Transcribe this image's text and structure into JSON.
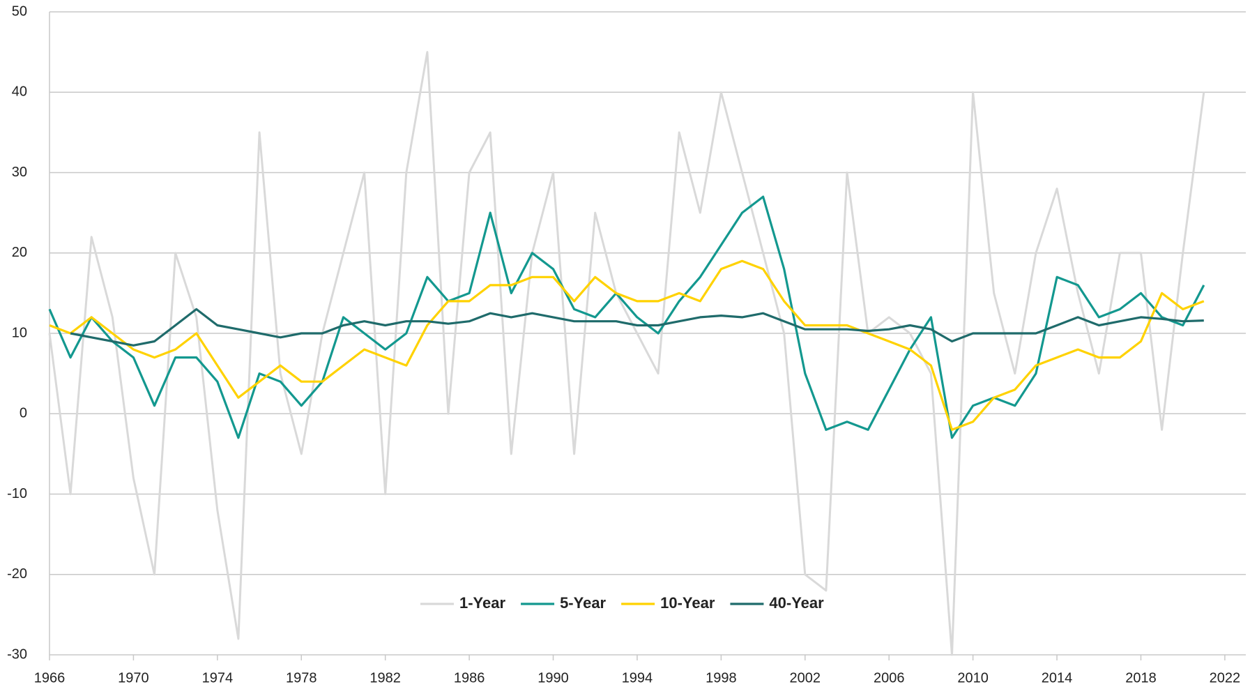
{
  "chart_data": {
    "type": "line",
    "x": [
      1966,
      1967,
      1968,
      1969,
      1970,
      1971,
      1972,
      1973,
      1974,
      1975,
      1976,
      1977,
      1978,
      1979,
      1980,
      1981,
      1982,
      1983,
      1984,
      1985,
      1986,
      1987,
      1988,
      1989,
      1990,
      1991,
      1992,
      1993,
      1994,
      1995,
      1996,
      1997,
      1998,
      1999,
      2000,
      2001,
      2002,
      2003,
      2004,
      2005,
      2006,
      2007,
      2008,
      2009,
      2010,
      2011,
      2012,
      2013,
      2014,
      2015,
      2016,
      2017,
      2018,
      2019,
      2020,
      2021
    ],
    "series": [
      {
        "name": "1-Year",
        "color": "#d9d9d9",
        "values": [
          10,
          -10,
          22,
          12,
          -8,
          -20,
          20,
          12,
          -12,
          -28,
          35,
          5,
          -5,
          10,
          20,
          30,
          -10,
          30,
          45,
          0,
          30,
          35,
          -5,
          20,
          30,
          -5,
          25,
          15,
          10,
          5,
          35,
          25,
          40,
          30,
          20,
          10,
          -20,
          -22,
          30,
          10,
          12,
          10,
          5,
          -30,
          40,
          15,
          5,
          20,
          28,
          15,
          5,
          20,
          20,
          -2,
          20,
          40
        ]
      },
      {
        "name": "5-Year",
        "color": "#13988f",
        "values": [
          13,
          7,
          12,
          9,
          7,
          1,
          7,
          7,
          4,
          -3,
          5,
          4,
          1,
          4,
          12,
          10,
          8,
          10,
          17,
          14,
          15,
          25,
          15,
          20,
          18,
          13,
          12,
          15,
          12,
          10,
          14,
          17,
          21,
          25,
          27,
          18,
          5,
          -2,
          -1,
          -2,
          3,
          8,
          12,
          -3,
          1,
          2,
          1,
          5,
          17,
          16,
          12,
          13,
          15,
          12,
          11,
          16
        ]
      },
      {
        "name": "10-Year",
        "color": "#ffd200",
        "values": [
          11,
          10,
          12,
          10,
          8,
          7,
          8,
          10,
          6,
          2,
          4,
          6,
          4,
          4,
          6,
          8,
          7,
          6,
          11,
          14,
          14,
          16,
          16,
          17,
          17,
          14,
          17,
          15,
          14,
          14,
          15,
          14,
          18,
          19,
          18,
          14,
          11,
          11,
          11,
          10,
          9,
          8,
          6,
          -2,
          -1,
          2,
          3,
          6,
          7,
          8,
          7,
          7,
          9,
          15,
          13,
          14
        ]
      },
      {
        "name": "40-Year",
        "color": "#1f6b6b",
        "values": [
          null,
          10,
          9.5,
          9,
          8.5,
          9,
          11,
          13,
          11,
          10.5,
          10,
          9.5,
          10,
          10,
          11,
          11.5,
          11,
          11.5,
          11.5,
          11.2,
          11.5,
          12.5,
          12,
          12.5,
          12,
          11.5,
          11.5,
          11.5,
          11,
          11,
          11.5,
          12,
          12.2,
          12,
          12.5,
          11.5,
          10.5,
          10.5,
          10.5,
          10.3,
          10.5,
          11,
          10.5,
          9,
          10,
          10,
          10,
          10,
          11,
          12,
          11,
          11.5,
          12,
          11.8,
          11.5,
          11.6
        ]
      }
    ],
    "xlim": [
      1966,
      2023
    ],
    "xticks": [
      1966,
      1970,
      1974,
      1978,
      1982,
      1986,
      1990,
      1994,
      1998,
      2002,
      2006,
      2010,
      2014,
      2018,
      2022
    ],
    "ylim": [
      -30,
      50
    ],
    "yticks": [
      -30,
      -20,
      -10,
      0,
      10,
      20,
      30,
      40,
      50
    ],
    "grid": true
  }
}
